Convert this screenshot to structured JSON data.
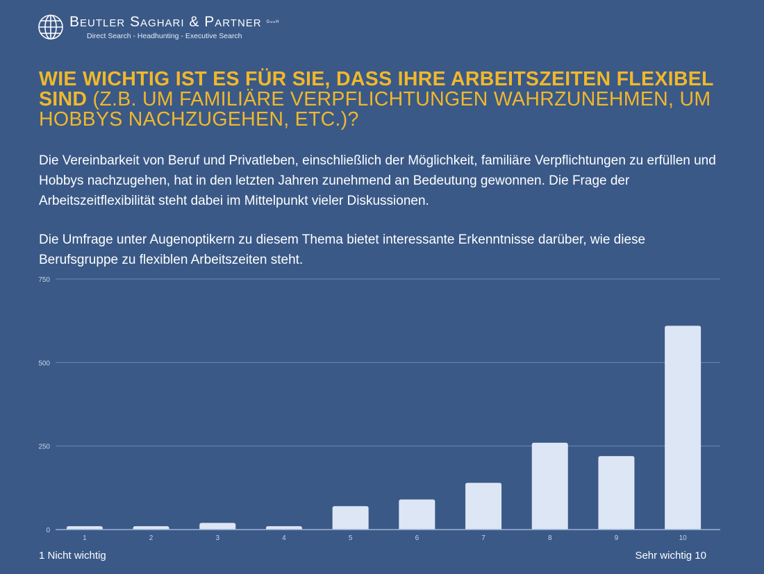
{
  "header": {
    "brand": "Beutler Saghari & Partner",
    "gmbh": "GmbH",
    "tagline": "Direct Search - Headhunting - Executive Search"
  },
  "title": {
    "bold": "Wie wichtig ist es für Sie, dass Ihre Arbeitszeiten flexibel sind",
    "rest": " (z.B. um familiäre Verpflichtungen wahrzunehmen, um Hobbys nachzugehen, etc.)?"
  },
  "paragraphs": [
    "Die Vereinbarkeit von Beruf und Privatleben, einschließlich der Möglichkeit, familiäre Verpflichtungen zu erfüllen und Hobbys nachzugehen, hat in den letzten Jahren zunehmend an Bedeutung gewonnen. Die Frage der Arbeitszeitflexibilität steht dabei im Mittelpunkt vieler Diskussionen.",
    "Die Umfrage unter Augenoptikern zu diesem Thema bietet interessante Erkenntnisse darüber, wie diese Berufsgruppe zu flexiblen Arbeitszeiten steht."
  ],
  "footer": {
    "left": "1 Nicht wichtig",
    "right": "Sehr wichtig 10"
  },
  "colors": {
    "bg": "#3a5987",
    "bar": "#dde6f5",
    "title": "#f1b82a"
  },
  "chart_data": {
    "type": "bar",
    "categories": [
      "1",
      "2",
      "3",
      "4",
      "5",
      "6",
      "7",
      "8",
      "9",
      "10"
    ],
    "values": [
      10,
      10,
      20,
      10,
      70,
      90,
      140,
      260,
      220,
      610
    ],
    "yticks": [
      0,
      250,
      500,
      750
    ],
    "ylim": [
      0,
      750
    ],
    "xlabel": "",
    "ylabel": "",
    "grid": true
  }
}
